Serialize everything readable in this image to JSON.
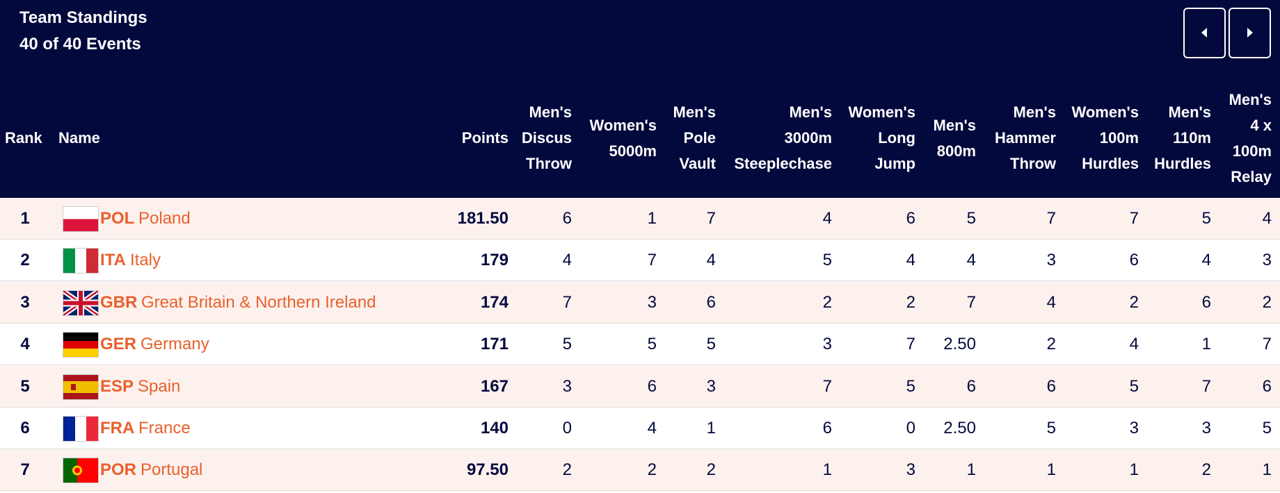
{
  "header": {
    "title": "Team Standings",
    "subtitle": "40 of 40 Events"
  },
  "table": {
    "columns": [
      "Rank",
      "Name",
      "Points",
      "Men's\nDiscus\nThrow",
      "Women's\n5000m",
      "Men's\nPole\nVault",
      "Men's\n3000m\nSteeplechase",
      "Women's\nLong\nJump",
      "Men's\n800m",
      "Men's\nHammer\nThrow",
      "Women's\n100m\nHurdles",
      "Men's\n110m\nHurdles",
      "Men's\n4 x\n100m\nRelay"
    ],
    "rows": [
      {
        "rank": "1",
        "code": "POL",
        "name": "Poland",
        "points": "181.50",
        "scores": [
          "6",
          "1",
          "7",
          "4",
          "6",
          "5",
          "7",
          "7",
          "5",
          "4"
        ]
      },
      {
        "rank": "2",
        "code": "ITA",
        "name": "Italy",
        "points": "179",
        "scores": [
          "4",
          "7",
          "4",
          "5",
          "4",
          "4",
          "3",
          "6",
          "4",
          "3"
        ]
      },
      {
        "rank": "3",
        "code": "GBR",
        "name": "Great Britain & Northern Ireland",
        "points": "174",
        "scores": [
          "7",
          "3",
          "6",
          "2",
          "2",
          "7",
          "4",
          "2",
          "6",
          "2"
        ]
      },
      {
        "rank": "4",
        "code": "GER",
        "name": "Germany",
        "points": "171",
        "scores": [
          "5",
          "5",
          "5",
          "3",
          "7",
          "2.50",
          "2",
          "4",
          "1",
          "7"
        ]
      },
      {
        "rank": "5",
        "code": "ESP",
        "name": "Spain",
        "points": "167",
        "scores": [
          "3",
          "6",
          "3",
          "7",
          "5",
          "6",
          "6",
          "5",
          "7",
          "6"
        ]
      },
      {
        "rank": "6",
        "code": "FRA",
        "name": "France",
        "points": "140",
        "scores": [
          "0",
          "4",
          "1",
          "6",
          "0",
          "2.50",
          "5",
          "3",
          "3",
          "5"
        ]
      },
      {
        "rank": "7",
        "code": "POR",
        "name": "Portugal",
        "points": "97.50",
        "scores": [
          "2",
          "2",
          "2",
          "1",
          "3",
          "1",
          "1",
          "1",
          "2",
          "1"
        ]
      }
    ]
  }
}
